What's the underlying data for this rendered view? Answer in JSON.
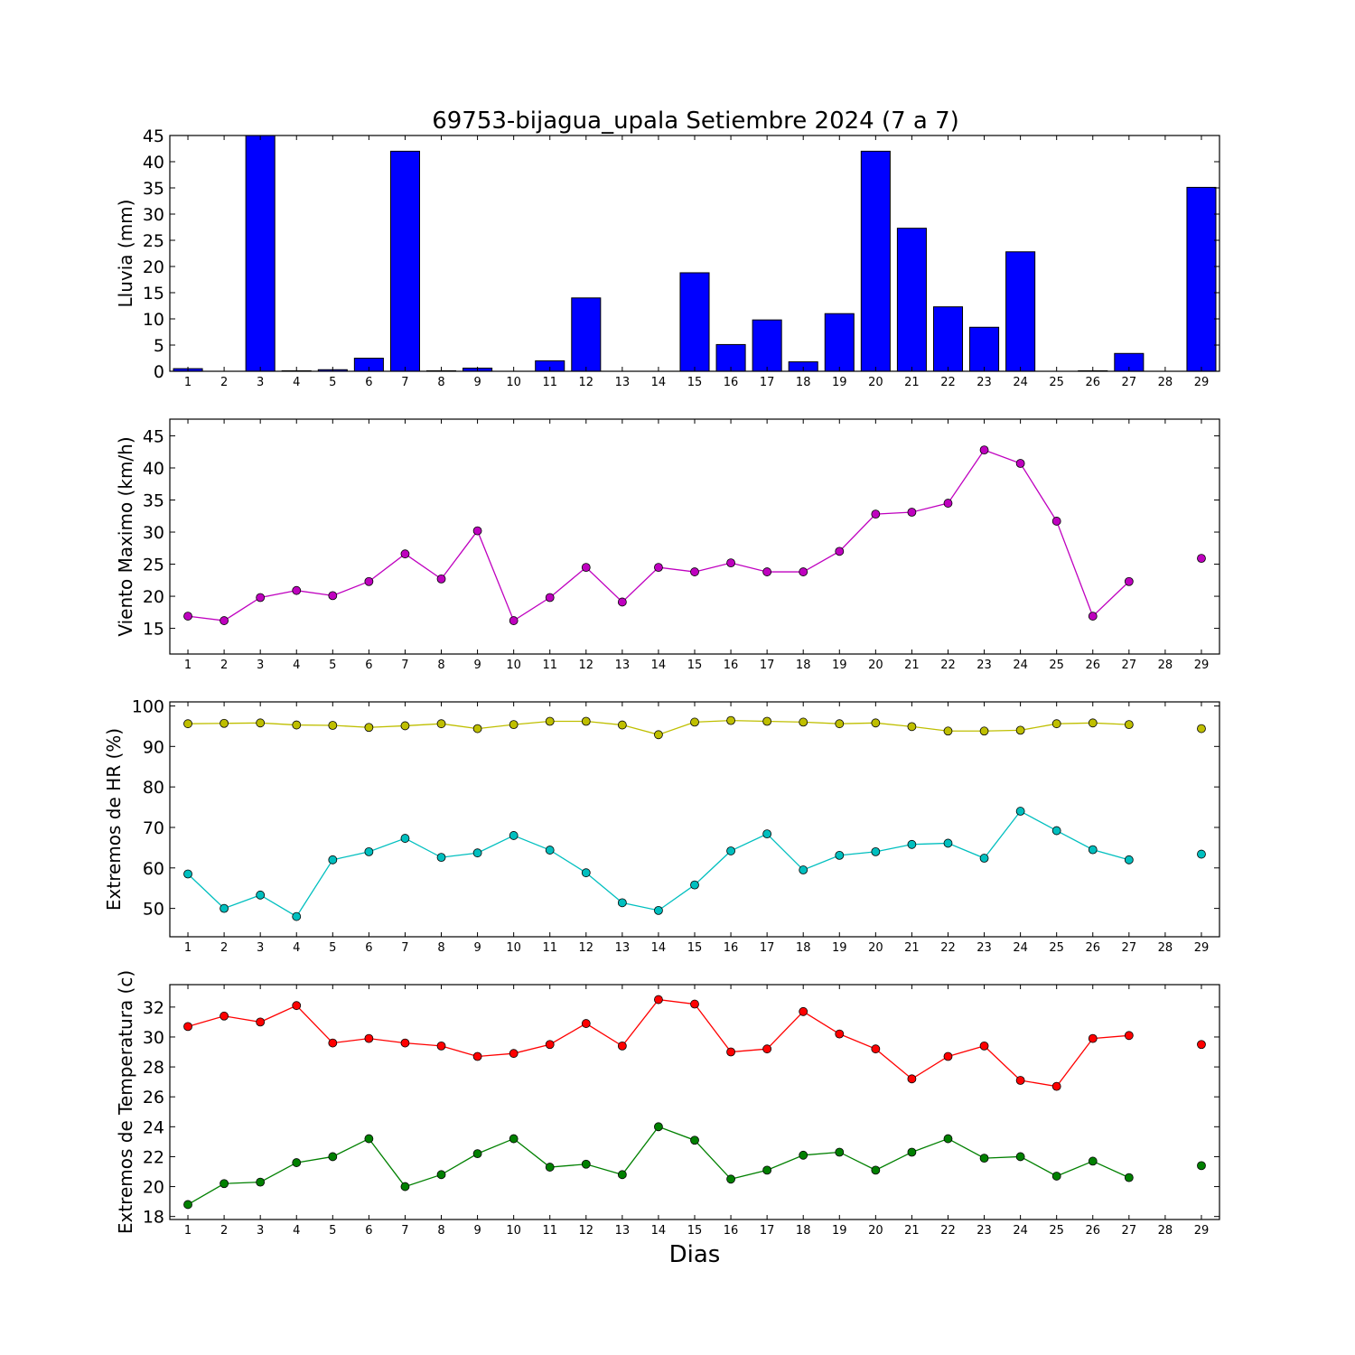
{
  "figure": {
    "title": "69753-bijagua_upala Setiembre 2024  (7 a 7)",
    "xlabel": "Dias"
  },
  "chart_data": [
    {
      "type": "bar",
      "ylabel": "Lluvia (mm)",
      "ylim": [
        0,
        45
      ],
      "yticks": [
        0,
        5,
        10,
        15,
        20,
        25,
        30,
        35,
        40,
        45
      ],
      "xticks": [
        1,
        2,
        3,
        4,
        5,
        6,
        7,
        8,
        9,
        10,
        11,
        12,
        13,
        14,
        15,
        16,
        17,
        18,
        19,
        20,
        21,
        22,
        23,
        24,
        25,
        26,
        27,
        28,
        29
      ],
      "series": [
        {
          "color": "#0000ff",
          "values": [
            0.5,
            0,
            45,
            0.1,
            0.3,
            2.5,
            42,
            0.1,
            0.6,
            0,
            2,
            14,
            0,
            0,
            18.8,
            5.1,
            9.8,
            1.8,
            11,
            42,
            27.3,
            12.3,
            8.4,
            22.8,
            0,
            0.1,
            3.4,
            0,
            35.1
          ]
        }
      ]
    },
    {
      "type": "line",
      "ylabel": "Viento Maximo (km/h)",
      "ylim": [
        11,
        47.6
      ],
      "yticks": [
        15,
        20,
        25,
        30,
        35,
        40,
        45
      ],
      "xticks": [
        1,
        2,
        3,
        4,
        5,
        6,
        7,
        8,
        9,
        10,
        11,
        12,
        13,
        14,
        15,
        16,
        17,
        18,
        19,
        20,
        21,
        22,
        23,
        24,
        25,
        26,
        27,
        28,
        29
      ],
      "series": [
        {
          "color": "#bf00bf",
          "values": [
            16.9,
            16.2,
            19.8,
            20.9,
            20.1,
            22.3,
            26.6,
            22.7,
            30.2,
            16.2,
            19.8,
            24.5,
            19.1,
            24.5,
            23.8,
            25.2,
            23.8,
            23.8,
            27,
            32.8,
            33.1,
            34.5,
            42.8,
            40.7,
            31.7,
            16.9,
            22.3,
            null,
            25.9
          ]
        }
      ]
    },
    {
      "type": "line",
      "ylabel": "Extremos de HR (%)",
      "ylim": [
        43,
        101
      ],
      "yticks": [
        50,
        60,
        70,
        80,
        90,
        100
      ],
      "xticks": [
        1,
        2,
        3,
        4,
        5,
        6,
        7,
        8,
        9,
        10,
        11,
        12,
        13,
        14,
        15,
        16,
        17,
        18,
        19,
        20,
        21,
        22,
        23,
        24,
        25,
        26,
        27,
        28,
        29
      ],
      "series": [
        {
          "color": "#bfbf00",
          "values": [
            95.6,
            95.7,
            95.8,
            95.3,
            95.2,
            94.7,
            95.1,
            95.6,
            94.4,
            95.4,
            96.2,
            96.2,
            95.3,
            92.9,
            96,
            96.4,
            96.2,
            96,
            95.6,
            95.8,
            94.9,
            93.8,
            93.8,
            94,
            95.6,
            95.8,
            95.4,
            null,
            94.4
          ]
        },
        {
          "color": "#00bfbf",
          "values": [
            58.5,
            50,
            53.3,
            48,
            62,
            64,
            67.3,
            62.6,
            63.7,
            68,
            64.4,
            58.8,
            51.4,
            49.5,
            55.8,
            64.2,
            68.4,
            59.5,
            63.1,
            64,
            65.8,
            66.1,
            62.4,
            74,
            69.2,
            64.5,
            62,
            null,
            63.4
          ]
        }
      ]
    },
    {
      "type": "line",
      "ylabel": "Extremos de Temperatura (c)",
      "ylim": [
        17.8,
        33.5
      ],
      "yticks": [
        18,
        20,
        22,
        24,
        26,
        28,
        30,
        32
      ],
      "xticks": [
        1,
        2,
        3,
        4,
        5,
        6,
        7,
        8,
        9,
        10,
        11,
        12,
        13,
        14,
        15,
        16,
        17,
        18,
        19,
        20,
        21,
        22,
        23,
        24,
        25,
        26,
        27,
        28,
        29
      ],
      "series": [
        {
          "color": "#ff0000",
          "values": [
            30.7,
            31.4,
            31,
            32.1,
            29.6,
            29.9,
            29.6,
            29.4,
            28.7,
            28.9,
            29.5,
            30.9,
            29.4,
            32.5,
            32.2,
            29,
            29.2,
            31.7,
            30.2,
            29.2,
            27.2,
            28.7,
            29.4,
            27.1,
            26.7,
            29.9,
            30.1,
            null,
            29.5
          ]
        },
        {
          "color": "#008000",
          "values": [
            18.8,
            20.2,
            20.3,
            21.6,
            22,
            23.2,
            20,
            20.8,
            22.2,
            23.2,
            21.3,
            21.5,
            20.8,
            24,
            23.1,
            20.5,
            21.1,
            22.1,
            22.3,
            21.1,
            22.3,
            23.2,
            21.9,
            22,
            20.7,
            21.7,
            20.6,
            null,
            21.4
          ]
        }
      ]
    }
  ]
}
